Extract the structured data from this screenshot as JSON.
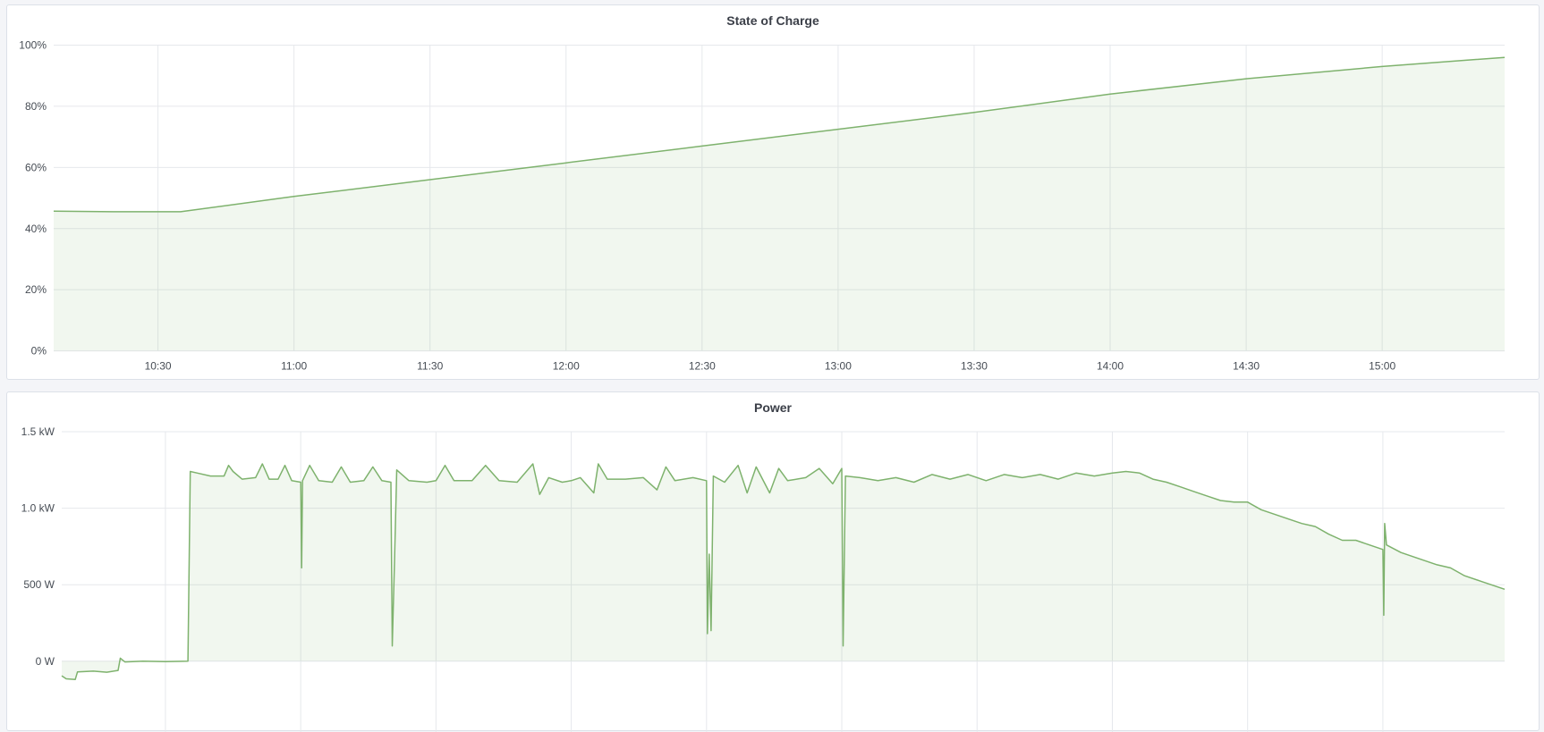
{
  "colors": {
    "line": "#7eb26d",
    "fill": "#7eb26d",
    "grid": "#e6e8ec",
    "background": "#f4f5f8"
  },
  "chart_data": [
    {
      "type": "area",
      "title": "State of Charge",
      "xlim": [
        "10:07",
        "15:27"
      ],
      "ylim": [
        0,
        100
      ],
      "y_unit": "%",
      "yticks": [
        "0%",
        "20%",
        "40%",
        "60%",
        "80%",
        "100%"
      ],
      "yticks_values": [
        0,
        20,
        40,
        60,
        80,
        100
      ],
      "xticks": [
        "10:30",
        "11:00",
        "11:30",
        "12:00",
        "12:30",
        "13:00",
        "13:30",
        "14:00",
        "14:30",
        "15:00"
      ],
      "grid": true,
      "legend": "none",
      "points": [
        [
          "10:07",
          45.7
        ],
        [
          "10:20",
          45.5
        ],
        [
          "10:35",
          45.5
        ],
        [
          "11:00",
          50.5
        ],
        [
          "11:30",
          56
        ],
        [
          "12:00",
          61.5
        ],
        [
          "12:30",
          67
        ],
        [
          "13:00",
          72.5
        ],
        [
          "13:30",
          78
        ],
        [
          "14:00",
          84
        ],
        [
          "14:30",
          89
        ],
        [
          "15:00",
          93
        ],
        [
          "15:27",
          96
        ]
      ]
    },
    {
      "type": "area",
      "title": "Power",
      "xlim": [
        "10:07",
        "15:27"
      ],
      "ylim": [
        -340,
        1500
      ],
      "y_unit": "W",
      "yticks": [
        "0 W",
        "500 W",
        "1.0 kW",
        "1.5 kW"
      ],
      "yticks_values": [
        0,
        500,
        1000,
        1500
      ],
      "xgrid": [
        "10:30",
        "11:00",
        "11:30",
        "12:00",
        "12:30",
        "13:00",
        "13:30",
        "14:00",
        "14:30",
        "15:00"
      ],
      "grid": true,
      "legend": "none",
      "points": [
        [
          "10:07:00",
          -95
        ],
        [
          "10:08:00",
          -115
        ],
        [
          "10:10:00",
          -120
        ],
        [
          "10:10:30",
          -70
        ],
        [
          "10:14:00",
          -65
        ],
        [
          "10:17:00",
          -72
        ],
        [
          "10:19:30",
          -60
        ],
        [
          "10:20:00",
          20
        ],
        [
          "10:21:00",
          -5
        ],
        [
          "10:25:00",
          0
        ],
        [
          "10:30:00",
          -3
        ],
        [
          "10:35:00",
          0
        ],
        [
          "10:35:30",
          1240
        ],
        [
          "10:37:00",
          1230
        ],
        [
          "10:40:00",
          1210
        ],
        [
          "10:43:00",
          1210
        ],
        [
          "10:44:00",
          1280
        ],
        [
          "10:45:00",
          1240
        ],
        [
          "10:47:00",
          1190
        ],
        [
          "10:50:00",
          1200
        ],
        [
          "10:51:30",
          1290
        ],
        [
          "10:53:00",
          1190
        ],
        [
          "10:55:00",
          1190
        ],
        [
          "10:56:30",
          1280
        ],
        [
          "10:58:00",
          1180
        ],
        [
          "11:00:00",
          1170
        ],
        [
          "11:00:12",
          610
        ],
        [
          "11:00:24",
          1180
        ],
        [
          "11:02:00",
          1280
        ],
        [
          "11:04:00",
          1180
        ],
        [
          "11:07:00",
          1170
        ],
        [
          "11:09:00",
          1270
        ],
        [
          "11:11:00",
          1170
        ],
        [
          "11:14:00",
          1180
        ],
        [
          "11:16:00",
          1270
        ],
        [
          "11:18:00",
          1180
        ],
        [
          "11:20:00",
          1170
        ],
        [
          "11:20:18",
          100
        ],
        [
          "11:20:48",
          650
        ],
        [
          "11:21:18",
          1250
        ],
        [
          "11:24:00",
          1180
        ],
        [
          "11:28:00",
          1170
        ],
        [
          "11:30:00",
          1180
        ],
        [
          "11:32:00",
          1280
        ],
        [
          "11:34:00",
          1180
        ],
        [
          "11:38:00",
          1180
        ],
        [
          "11:41:00",
          1280
        ],
        [
          "11:44:00",
          1180
        ],
        [
          "11:48:00",
          1170
        ],
        [
          "11:51:30",
          1290
        ],
        [
          "11:53:00",
          1090
        ],
        [
          "11:55:00",
          1200
        ],
        [
          "11:58:00",
          1170
        ],
        [
          "12:00:00",
          1180
        ],
        [
          "12:02:00",
          1200
        ],
        [
          "12:05:00",
          1100
        ],
        [
          "12:06:00",
          1290
        ],
        [
          "12:08:00",
          1190
        ],
        [
          "12:12:00",
          1190
        ],
        [
          "12:16:00",
          1200
        ],
        [
          "12:19:00",
          1120
        ],
        [
          "12:21:00",
          1270
        ],
        [
          "12:23:00",
          1180
        ],
        [
          "12:27:00",
          1200
        ],
        [
          "12:30:00",
          1180
        ],
        [
          "12:30:12",
          180
        ],
        [
          "12:30:36",
          700
        ],
        [
          "12:31:00",
          200
        ],
        [
          "12:31:30",
          1210
        ],
        [
          "12:34:00",
          1170
        ],
        [
          "12:37:00",
          1280
        ],
        [
          "12:39:00",
          1100
        ],
        [
          "12:41:00",
          1270
        ],
        [
          "12:44:00",
          1100
        ],
        [
          "12:46:00",
          1260
        ],
        [
          "12:48:00",
          1180
        ],
        [
          "12:52:00",
          1200
        ],
        [
          "12:55:00",
          1260
        ],
        [
          "12:58:00",
          1160
        ],
        [
          "13:00:00",
          1260
        ],
        [
          "13:00:18",
          100
        ],
        [
          "13:00:48",
          1210
        ],
        [
          "13:04:00",
          1200
        ],
        [
          "13:08:00",
          1180
        ],
        [
          "13:12:00",
          1200
        ],
        [
          "13:16:00",
          1170
        ],
        [
          "13:20:00",
          1220
        ],
        [
          "13:24:00",
          1190
        ],
        [
          "13:28:00",
          1220
        ],
        [
          "13:32:00",
          1180
        ],
        [
          "13:36:00",
          1220
        ],
        [
          "13:40:00",
          1200
        ],
        [
          "13:44:00",
          1220
        ],
        [
          "13:48:00",
          1190
        ],
        [
          "13:52:00",
          1230
        ],
        [
          "13:56:00",
          1210
        ],
        [
          "14:00:00",
          1230
        ],
        [
          "14:03:00",
          1240
        ],
        [
          "14:06:00",
          1230
        ],
        [
          "14:09:00",
          1190
        ],
        [
          "14:12:00",
          1170
        ],
        [
          "14:15:00",
          1140
        ],
        [
          "14:18:00",
          1110
        ],
        [
          "14:21:00",
          1080
        ],
        [
          "14:24:00",
          1050
        ],
        [
          "14:27:00",
          1040
        ],
        [
          "14:30:00",
          1040
        ],
        [
          "14:33:00",
          990
        ],
        [
          "14:36:00",
          960
        ],
        [
          "14:39:00",
          930
        ],
        [
          "14:42:00",
          900
        ],
        [
          "14:45:00",
          880
        ],
        [
          "14:48:00",
          830
        ],
        [
          "14:51:00",
          790
        ],
        [
          "14:54:00",
          790
        ],
        [
          "14:57:00",
          760
        ],
        [
          "15:00:00",
          730
        ],
        [
          "15:00:12",
          300
        ],
        [
          "15:00:24",
          900
        ],
        [
          "15:00:48",
          760
        ],
        [
          "15:04:00",
          710
        ],
        [
          "15:08:00",
          670
        ],
        [
          "15:12:00",
          630
        ],
        [
          "15:15:00",
          610
        ],
        [
          "15:18:00",
          560
        ],
        [
          "15:22:00",
          520
        ],
        [
          "15:27:00",
          470
        ]
      ]
    }
  ]
}
